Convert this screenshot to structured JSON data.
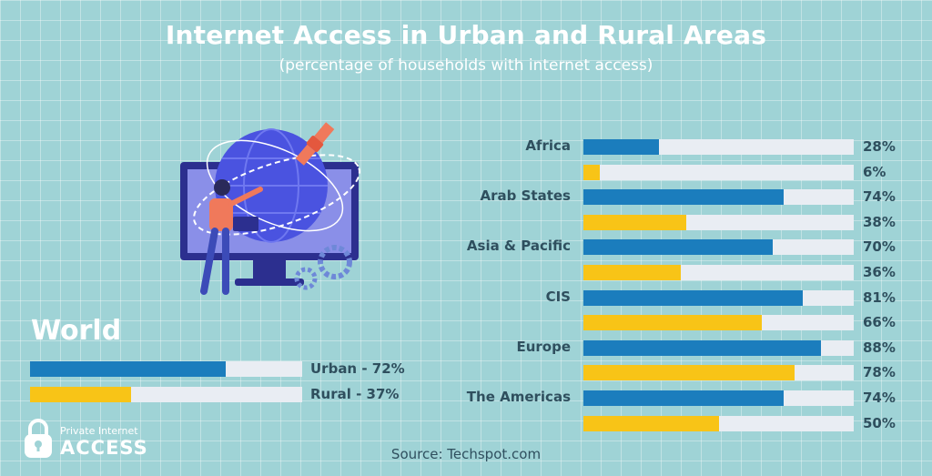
{
  "chart_data": {
    "type": "bar",
    "title": "Internet Access in Urban and Rural Areas",
    "subtitle": "(percentage of households with internet access)",
    "orientation": "horizontal",
    "xlim": [
      0,
      100
    ],
    "categories": [
      "Africa",
      "Arab States",
      "Asia & Pacific",
      "CIS",
      "Europe",
      "The Americas"
    ],
    "series": [
      {
        "color": "#1b7dbd",
        "values": [
          28,
          74,
          70,
          81,
          88,
          74
        ],
        "labels": [
          "28%",
          "74%",
          "70%",
          "81%",
          "88%",
          "74%"
        ]
      },
      {
        "color": "#f8c417",
        "values": [
          6,
          38,
          36,
          66,
          78,
          50
        ],
        "labels": [
          "6%",
          "38%",
          "36%",
          "66%",
          "78%",
          "50%"
        ]
      }
    ],
    "world": {
      "title": "World",
      "bars": [
        {
          "label": "Urban - 72%",
          "value": 72,
          "color": "#1b7dbd"
        },
        {
          "label": "Rural - 37%",
          "value": 37,
          "color": "#f8c417"
        }
      ]
    }
  },
  "source": "Source: Techspot.com",
  "logo": {
    "small": "Private Internet",
    "big": "ACCESS",
    "icon": "padlock-icon"
  },
  "illustration": {
    "icon": "globe-monitor-satellite-icon"
  },
  "colors": {
    "background": "#9fd3d6",
    "urban": "#1b7dbd",
    "rural": "#f8c417",
    "track": "#e9edf3",
    "text_dark": "#2f4f5e"
  }
}
